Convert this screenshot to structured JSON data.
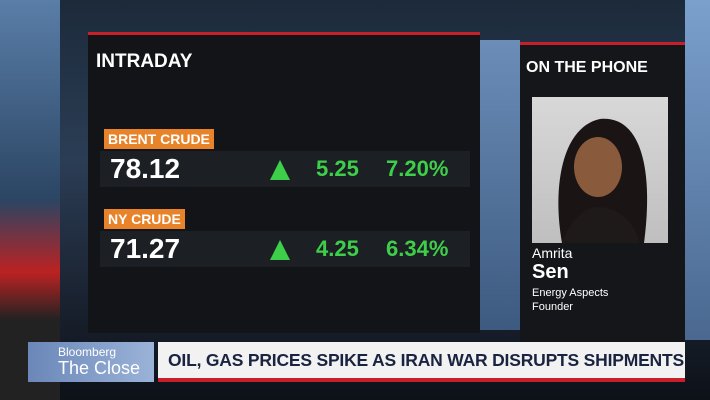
{
  "panel": {
    "title": "INTRADAY",
    "rows": [
      {
        "label": "BRENT CRUDE",
        "price": "78.12",
        "change": "5.25",
        "percent": "7.20%"
      },
      {
        "label": "NY CRUDE",
        "price": "71.27",
        "change": "4.25",
        "percent": "6.34%"
      }
    ]
  },
  "guest": {
    "header": "ON THE PHONE",
    "first_name": "Amrita",
    "last_name": "Sen",
    "company": "Energy Aspects",
    "role": "Founder"
  },
  "lower_third": {
    "brand": "Bloomberg",
    "show": "The Close",
    "headline": "OIL, GAS PRICES SPIKE AS IRAN WAR DISRUPTS SHIPMENTS"
  }
}
